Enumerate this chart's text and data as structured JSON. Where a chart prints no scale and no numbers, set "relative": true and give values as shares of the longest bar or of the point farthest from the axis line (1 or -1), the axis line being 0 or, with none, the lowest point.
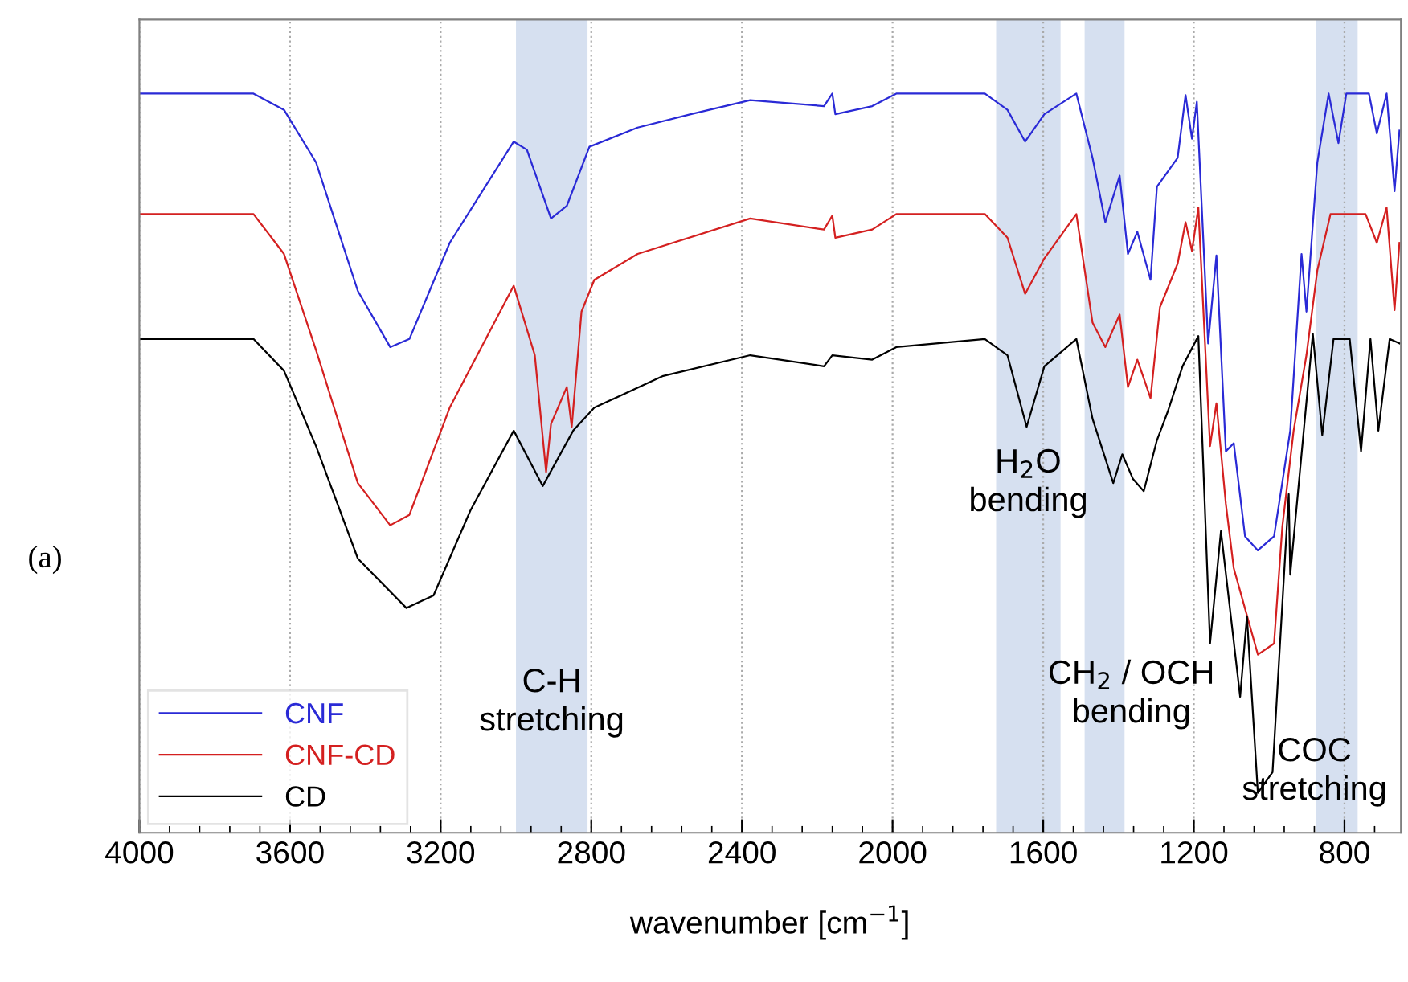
{
  "chart_data": {
    "type": "line",
    "relative": true,
    "xlabel": "wavenumber [cm$^{−1}$]",
    "xlim": [
      4000,
      650
    ],
    "xticks": [
      4000,
      3600,
      3200,
      2800,
      2400,
      2000,
      1600,
      1200,
      800
    ],
    "grid": "x",
    "legend": "bottom left",
    "tick_labels": "x",
    "annotations": [
      "(a)"
    ],
    "bands": [
      {
        "axis": "x",
        "from": 3000,
        "to": 2810,
        "label": "C-H\nstretching",
        "color": "#d6e0f0"
      },
      {
        "axis": "x",
        "from": 1725,
        "to": 1554,
        "label": "H$_{2}$O\nbending",
        "color": "#d6e0f0"
      },
      {
        "axis": "x",
        "from": 1490,
        "to": 1384,
        "label": "CH$_{2}$ / OCH\nbending",
        "color": "#d6e0f0"
      },
      {
        "axis": "x",
        "from": 876,
        "to": 765,
        "label": "COC\nstretching",
        "color": "#d6e0f0"
      }
    ],
    "series": [
      {
        "name": "CNF",
        "color": "#2a2ad6",
        "x": [
          4000,
          3697,
          3616,
          3531,
          3420,
          3334,
          3283,
          3176,
          3006,
          2971,
          2907,
          2865,
          2805,
          2677,
          2536,
          2378,
          2182,
          2160,
          2152,
          2054,
          1990,
          1755,
          1695,
          1648,
          1597,
          1512,
          1469,
          1435,
          1397,
          1375,
          1350,
          1315,
          1298,
          1243,
          1222,
          1205,
          1192,
          1162,
          1140,
          1115,
          1094,
          1064,
          1030,
          987,
          944,
          914,
          901,
          872,
          842,
          816,
          795,
          735,
          714,
          688,
          667,
          654
        ],
        "values": [
          1.0,
          1.0,
          0.978,
          0.907,
          0.733,
          0.657,
          0.668,
          0.798,
          0.935,
          0.924,
          0.831,
          0.848,
          0.928,
          0.954,
          0.972,
          0.991,
          0.983,
          1.0,
          0.972,
          0.983,
          1.0,
          1.0,
          0.978,
          0.935,
          0.972,
          1.0,
          0.913,
          0.826,
          0.889,
          0.783,
          0.813,
          0.748,
          0.874,
          0.913,
          0.998,
          0.939,
          0.989,
          0.662,
          0.781,
          0.516,
          0.527,
          0.401,
          0.382,
          0.401,
          0.544,
          0.783,
          0.705,
          0.907,
          1.0,
          0.933,
          1.0,
          1.0,
          0.946,
          1.0,
          0.868,
          0.95
        ]
      },
      {
        "name": "CNF-CD",
        "color": "#d42020",
        "x": [
          4000,
          3697,
          3616,
          3531,
          3420,
          3334,
          3283,
          3176,
          3006,
          2950,
          2920,
          2907,
          2865,
          2852,
          2826,
          2792,
          2677,
          2378,
          2182,
          2160,
          2152,
          2054,
          1990,
          1755,
          1695,
          1648,
          1597,
          1512,
          1469,
          1435,
          1397,
          1375,
          1350,
          1315,
          1290,
          1243,
          1222,
          1205,
          1188,
          1157,
          1140,
          1115,
          1094,
          1030,
          987,
          965,
          935,
          901,
          872,
          837,
          744,
          714,
          688,
          667,
          654
        ],
        "values": [
          0.837,
          0.837,
          0.783,
          0.653,
          0.473,
          0.416,
          0.43,
          0.575,
          0.74,
          0.646,
          0.488,
          0.553,
          0.603,
          0.549,
          0.705,
          0.748,
          0.783,
          0.831,
          0.816,
          0.835,
          0.805,
          0.816,
          0.837,
          0.837,
          0.805,
          0.729,
          0.777,
          0.837,
          0.69,
          0.657,
          0.701,
          0.603,
          0.64,
          0.588,
          0.711,
          0.77,
          0.826,
          0.787,
          0.846,
          0.523,
          0.581,
          0.445,
          0.358,
          0.241,
          0.256,
          0.414,
          0.544,
          0.646,
          0.761,
          0.837,
          0.837,
          0.798,
          0.846,
          0.707,
          0.798
        ]
      },
      {
        "name": "CD",
        "color": "#000000",
        "x": [
          4000,
          3697,
          3616,
          3531,
          3420,
          3291,
          3219,
          3121,
          3006,
          2929,
          2848,
          2792,
          2609,
          2378,
          2182,
          2160,
          2054,
          1990,
          1755,
          1695,
          1644,
          1597,
          1512,
          1469,
          1414,
          1390,
          1362,
          1333,
          1298,
          1269,
          1230,
          1188,
          1157,
          1128,
          1077,
          1059,
          1030,
          991,
          948,
          944,
          884,
          859,
          829,
          786,
          756,
          731,
          710,
          680,
          654
        ],
        "values": [
          0.668,
          0.668,
          0.625,
          0.523,
          0.371,
          0.304,
          0.321,
          0.436,
          0.544,
          0.469,
          0.544,
          0.575,
          0.618,
          0.646,
          0.631,
          0.646,
          0.64,
          0.657,
          0.668,
          0.646,
          0.549,
          0.631,
          0.668,
          0.56,
          0.473,
          0.512,
          0.479,
          0.462,
          0.531,
          0.57,
          0.631,
          0.672,
          0.256,
          0.408,
          0.184,
          0.293,
          0.054,
          0.082,
          0.458,
          0.349,
          0.675,
          0.538,
          0.668,
          0.668,
          0.516,
          0.668,
          0.544,
          0.668,
          0.662
        ]
      }
    ]
  }
}
